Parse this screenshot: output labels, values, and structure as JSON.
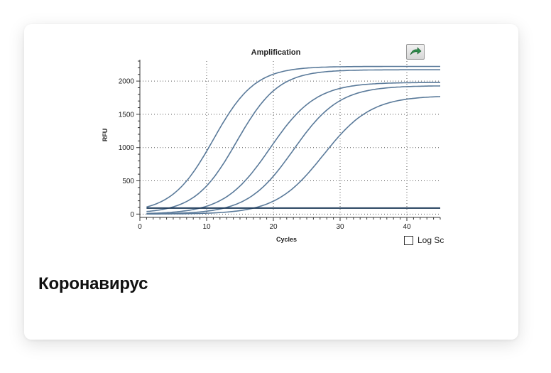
{
  "caption": "Коронавирус",
  "log_toggle": {
    "label": "Log Sc",
    "checked": false
  },
  "colors": {
    "curve": "#5a7a9a",
    "threshold": "#1f3b5a",
    "grid": "#555555",
    "axis": "#333333"
  },
  "icons": {
    "export": "export-arrow-icon"
  },
  "chart_data": {
    "type": "line",
    "title": "Amplification",
    "xlabel": "Cycles",
    "ylabel": "RFU",
    "xlim": [
      0,
      45
    ],
    "ylim": [
      -50,
      2300
    ],
    "x_ticks": [
      0,
      10,
      20,
      30,
      40
    ],
    "y_ticks": [
      0,
      500,
      1000,
      1500,
      2000
    ],
    "grid": true,
    "threshold": 90,
    "series": [
      {
        "x_start": 1,
        "x_end": 45,
        "baseline": 20,
        "plateau": 2220,
        "midpoint": 11,
        "slope": 0.32
      },
      {
        "x_start": 1,
        "x_end": 45,
        "baseline": 10,
        "plateau": 2170,
        "midpoint": 14.5,
        "slope": 0.32
      },
      {
        "x_start": 1,
        "x_end": 45,
        "baseline": 0,
        "plateau": 1980,
        "midpoint": 19.5,
        "slope": 0.29
      },
      {
        "x_start": 1,
        "x_end": 45,
        "baseline": 0,
        "plateau": 1930,
        "midpoint": 23,
        "slope": 0.29
      },
      {
        "x_start": 1,
        "x_end": 45,
        "baseline": 0,
        "plateau": 1780,
        "midpoint": 27.5,
        "slope": 0.28
      }
    ]
  }
}
